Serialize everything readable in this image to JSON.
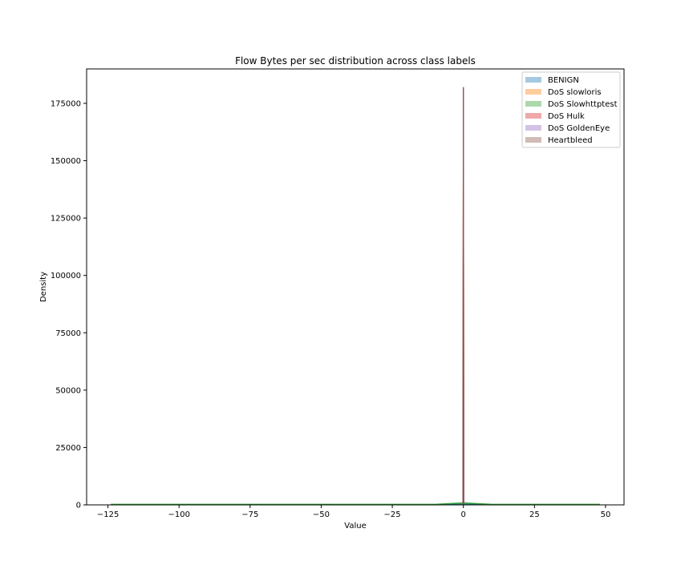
{
  "chart_data": {
    "type": "area",
    "title": "Flow Bytes per sec distribution across class labels",
    "xlabel": "Value",
    "ylabel": "Density",
    "xlim": [
      -132.5,
      56.5
    ],
    "ylim": [
      0,
      190000
    ],
    "xticks": [
      -125,
      -100,
      -75,
      -50,
      -25,
      0,
      25,
      50
    ],
    "xtick_labels": [
      "−125",
      "−100",
      "−75",
      "−50",
      "−25",
      "0",
      "25",
      "50"
    ],
    "yticks": [
      0,
      25000,
      50000,
      75000,
      100000,
      125000,
      150000,
      175000
    ],
    "ytick_labels": [
      "0",
      "25000",
      "50000",
      "75000",
      "100000",
      "125000",
      "150000",
      "175000"
    ],
    "grid": false,
    "legend_position": "top-right",
    "series": [
      {
        "name": "BENIGN",
        "color": "#1f77b4",
        "x": [
          -124,
          -60,
          -10,
          -0.2,
          0,
          0.2,
          10,
          48
        ],
        "y": [
          150,
          150,
          150,
          400,
          1200,
          400,
          150,
          150
        ]
      },
      {
        "name": "DoS slowloris",
        "color": "#ff7f0e",
        "x": [
          -0.15,
          0,
          0.15
        ],
        "y": [
          0,
          182000,
          0
        ]
      },
      {
        "name": "DoS Slowhttptest",
        "color": "#2ca02c",
        "x": [
          -124,
          -60,
          -10,
          0,
          10,
          48
        ],
        "y": [
          250,
          250,
          250,
          900,
          250,
          250
        ]
      },
      {
        "name": "DoS Hulk",
        "color": "#d62728",
        "x": [
          -0.15,
          0,
          0.15
        ],
        "y": [
          0,
          182000,
          0
        ]
      },
      {
        "name": "DoS GoldenEye",
        "color": "#9467bd",
        "x": [
          -0.15,
          0,
          0.15
        ],
        "y": [
          0,
          182000,
          0
        ]
      },
      {
        "name": "Heartbleed",
        "color": "#8c564b",
        "x": [
          -0.15,
          0,
          0.15
        ],
        "y": [
          0,
          182000,
          0
        ]
      }
    ]
  }
}
